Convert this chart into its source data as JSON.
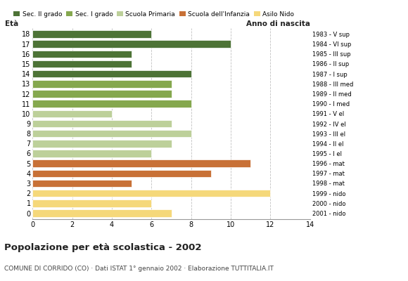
{
  "ages": [
    18,
    17,
    16,
    15,
    14,
    13,
    12,
    11,
    10,
    9,
    8,
    7,
    6,
    5,
    4,
    3,
    2,
    1,
    0
  ],
  "values": [
    6,
    10,
    5,
    5,
    8,
    7,
    7,
    8,
    4,
    7,
    8,
    7,
    6,
    11,
    9,
    5,
    12,
    6,
    7
  ],
  "right_labels": [
    "1983 - V sup",
    "1984 - VI sup",
    "1985 - III sup",
    "1986 - II sup",
    "1987 - I sup",
    "1988 - III med",
    "1989 - II med",
    "1990 - I med",
    "1991 - V el",
    "1992 - IV el",
    "1993 - III el",
    "1994 - II el",
    "1995 - I el",
    "1996 - mat",
    "1997 - mat",
    "1998 - mat",
    "1999 - nido",
    "2000 - nido",
    "2001 - nido"
  ],
  "color_map": {
    "18": "#4d7336",
    "17": "#4d7336",
    "16": "#4d7336",
    "15": "#4d7336",
    "14": "#4d7336",
    "13": "#85a84e",
    "12": "#85a84e",
    "11": "#85a84e",
    "10": "#bdd09a",
    "9": "#bdd09a",
    "8": "#bdd09a",
    "7": "#bdd09a",
    "6": "#bdd09a",
    "5": "#c87137",
    "4": "#c87137",
    "3": "#c87137",
    "2": "#f5d87a",
    "1": "#f5d87a",
    "0": "#f5d87a"
  },
  "title": "Popolazione per età scolastica - 2002",
  "subtitle": "COMUNE DI CORRIDO (CO) · Dati ISTAT 1° gennaio 2002 · Elaborazione TUTTITALIA.IT",
  "xlabel_left": "Età",
  "xlabel_right": "Anno di nascita",
  "xlim": [
    0,
    14
  ],
  "xticks": [
    0,
    2,
    4,
    6,
    8,
    10,
    12,
    14
  ],
  "legend_labels": [
    "Sec. II grado",
    "Sec. I grado",
    "Scuola Primaria",
    "Scuola dell'Infanzia",
    "Asilo Nido"
  ],
  "legend_colors": [
    "#4d7336",
    "#85a84e",
    "#bdd09a",
    "#c87137",
    "#f5d87a"
  ],
  "bar_height": 0.75,
  "grid_color": "#bbbbbb",
  "background_color": "#ffffff"
}
